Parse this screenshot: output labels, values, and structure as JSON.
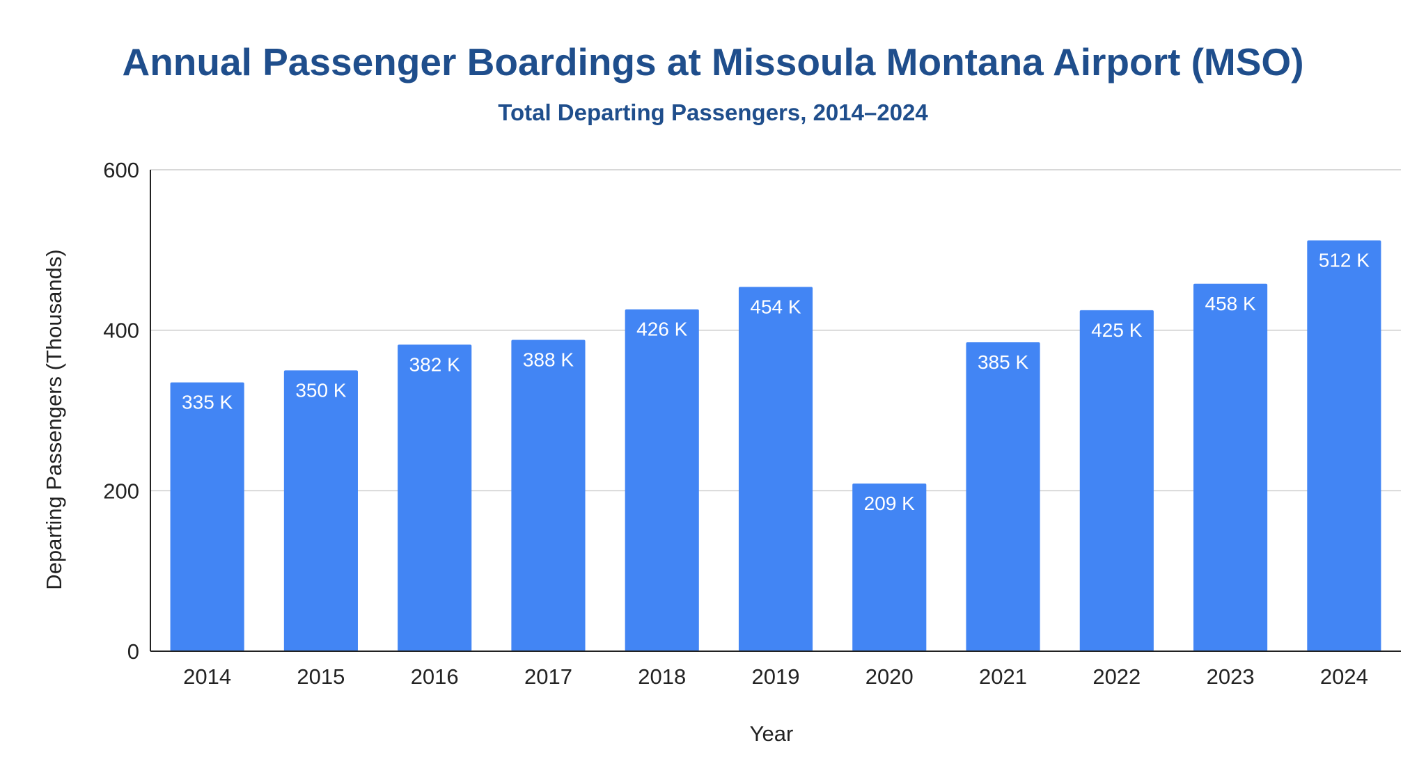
{
  "chart_data": {
    "type": "bar",
    "title": "Annual Passenger Boardings at Missoula Montana Airport (MSO)",
    "subtitle": "Total Departing Passengers, 2014–2024",
    "xlabel": "Year",
    "ylabel": "Departing Passengers (Thousands)",
    "categories": [
      "2014",
      "2015",
      "2016",
      "2017",
      "2018",
      "2019",
      "2020",
      "2021",
      "2022",
      "2023",
      "2024"
    ],
    "values": [
      335,
      350,
      382,
      388,
      426,
      454,
      209,
      385,
      425,
      458,
      512
    ],
    "data_labels": [
      "335 K",
      "350 K",
      "382 K",
      "388 K",
      "426 K",
      "454 K",
      "209 K",
      "385 K",
      "425 K",
      "458 K",
      "512 K"
    ],
    "ylim": [
      0,
      600
    ],
    "yticks": [
      0,
      200,
      400,
      600
    ],
    "grid": true,
    "legend": "none",
    "colors": {
      "bar": "#4285f4",
      "title": "#1f4e8c",
      "gridline": "#cccccc",
      "axis": "#222222",
      "data_label": "#ffffff"
    }
  }
}
